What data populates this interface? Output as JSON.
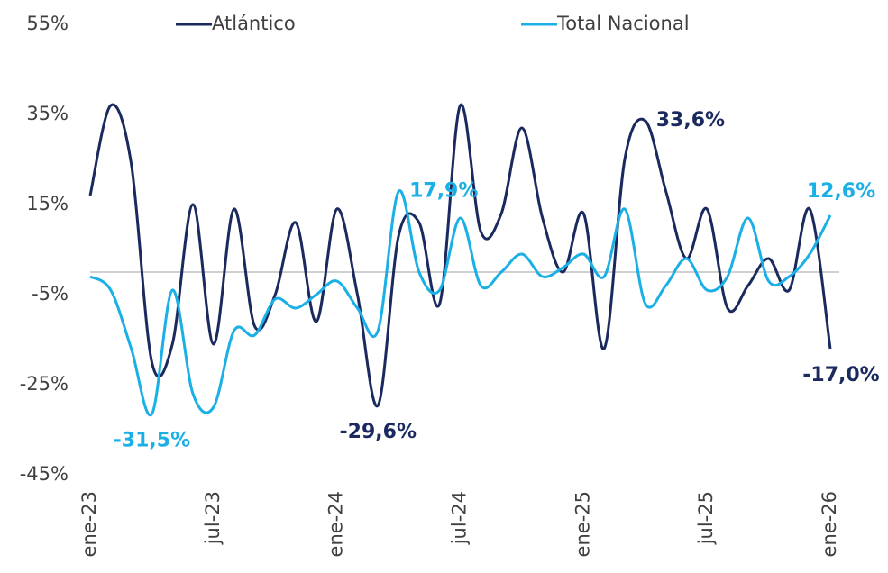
{
  "chart_data": {
    "type": "line",
    "categories": [
      "ene-23",
      null,
      null,
      null,
      null,
      null,
      "jul-23",
      null,
      null,
      null,
      null,
      null,
      "ene-24",
      null,
      null,
      null,
      null,
      null,
      "jul-24",
      null,
      null,
      null,
      null,
      null,
      "ene-25",
      null,
      null,
      null,
      null,
      null,
      "jul-25",
      null,
      null,
      null,
      null,
      null,
      "ene-26"
    ],
    "series": [
      {
        "name": "Atlántico",
        "color": "#1b2a5e",
        "values": [
          17,
          37,
          24,
          -20,
          -16,
          15,
          -16,
          14,
          -12,
          -5,
          11,
          -11,
          14,
          -5,
          -29.6,
          8,
          11,
          -7,
          37,
          9,
          13,
          32,
          12,
          0,
          13,
          -17,
          25,
          33.6,
          18,
          3,
          14,
          -8,
          -3,
          3,
          -4,
          14,
          -17.0
        ],
        "value_labels": [
          null,
          null,
          null,
          null,
          null,
          null,
          null,
          null,
          null,
          null,
          null,
          null,
          null,
          null,
          "-29,6%",
          null,
          null,
          null,
          null,
          null,
          null,
          null,
          null,
          null,
          null,
          null,
          null,
          "33,6%",
          null,
          null,
          null,
          null,
          null,
          null,
          null,
          null,
          "-17,0%"
        ]
      },
      {
        "name": "Total Nacional",
        "color": "#1ab0e6",
        "values": [
          -1,
          -4,
          -17,
          -31.5,
          -4,
          -27,
          -30,
          -13,
          -14,
          -6,
          -8,
          -5,
          -2,
          -8,
          -13,
          17.9,
          0,
          -4,
          12,
          -3,
          0,
          4,
          -1,
          1,
          4,
          -1,
          14,
          -7,
          -3,
          3,
          -4,
          -1,
          12,
          -2,
          -1,
          4,
          12.6
        ],
        "value_labels": [
          null,
          null,
          null,
          "-31,5%",
          null,
          null,
          null,
          null,
          null,
          null,
          null,
          null,
          null,
          null,
          null,
          "17,9%",
          null,
          null,
          null,
          null,
          null,
          null,
          null,
          null,
          null,
          null,
          null,
          null,
          null,
          null,
          null,
          null,
          null,
          null,
          null,
          null,
          "12,6%"
        ]
      }
    ],
    "ylim": [
      -45,
      55
    ],
    "yticks": [
      {
        "value": -45,
        "label": "-45%"
      },
      {
        "value": -25,
        "label": "-25%"
      },
      {
        "value": -5,
        "label": "-5%"
      },
      {
        "value": 15,
        "label": "15%"
      },
      {
        "value": 35,
        "label": "35%"
      },
      {
        "value": 55,
        "label": "55%"
      }
    ],
    "legend": "top",
    "grid": false
  }
}
